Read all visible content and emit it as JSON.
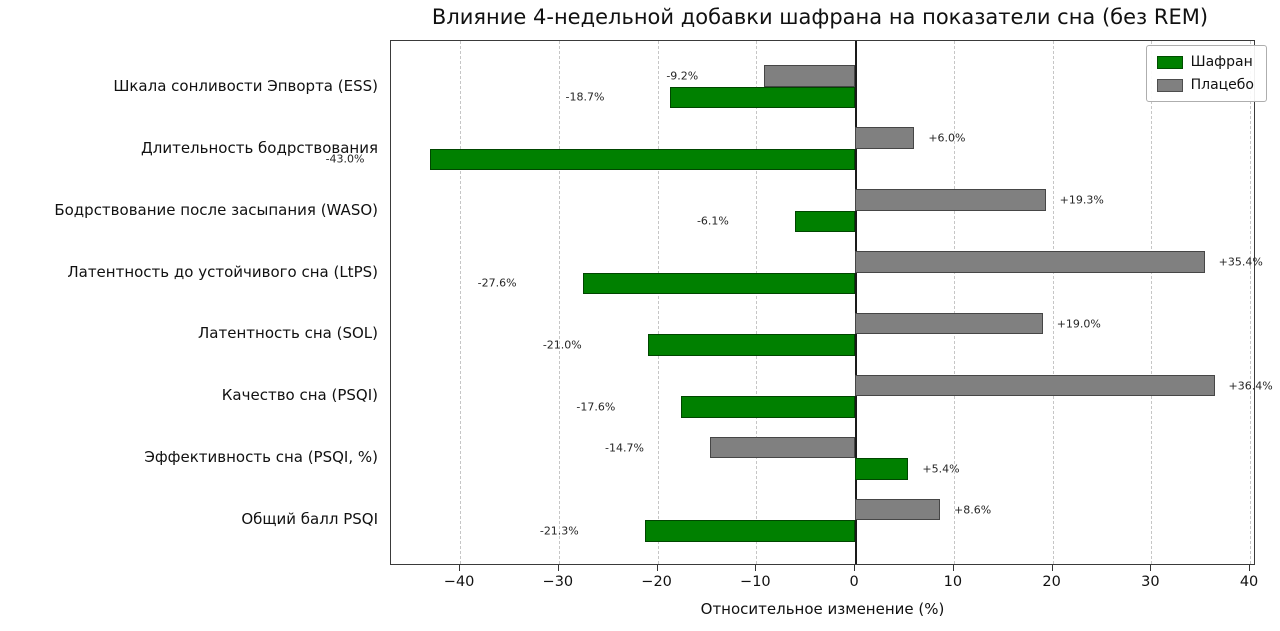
{
  "chart_data": {
    "type": "bar",
    "orientation": "horizontal",
    "title": "Влияние 4-недельной добавки шафрана на показатели сна (без REM)",
    "xlabel": "Относительное изменение (%)",
    "ylabel": "",
    "categories": [
      "Шкала сонливости Эпворта (ESS)",
      "Длительность бодрствования",
      "Бодрствование после засыпания (WASO)",
      "Латентность до устойчивого сна (LtPS)",
      "Латентность сна (SOL)",
      "Качество сна (PSQI)",
      "Эффективность сна (PSQI, %)",
      "Общий балл PSQI"
    ],
    "series": [
      {
        "name": "Шафран",
        "color": "#008000",
        "values": [
          -18.7,
          -43.0,
          -6.1,
          -27.6,
          -21.0,
          -17.6,
          5.4,
          -21.3
        ],
        "labels": [
          "-18.7%",
          "-43.0%",
          "-6.1%",
          "-27.6%",
          "-21.0%",
          "-17.6%",
          "+5.4%",
          "-21.3%"
        ]
      },
      {
        "name": "Плацебо",
        "color": "#808080",
        "values": [
          -9.2,
          6.0,
          19.3,
          35.4,
          19.0,
          36.4,
          -14.7,
          8.6
        ],
        "labels": [
          "-9.2%",
          "+6.0%",
          "+19.3%",
          "+35.4%",
          "+19.0%",
          "+36.4%",
          "-14.7%",
          "+8.6%"
        ]
      }
    ],
    "xlim": [
      -47,
      40.6
    ],
    "xticks": [
      -40,
      -30,
      -20,
      -10,
      0,
      10,
      20,
      30,
      40
    ],
    "xtick_labels": [
      "−40",
      "−30",
      "−20",
      "−10",
      "0",
      "10",
      "20",
      "30",
      "40"
    ],
    "grid": "vertical-dashed",
    "zero_line": true,
    "legend_position": "upper right"
  }
}
